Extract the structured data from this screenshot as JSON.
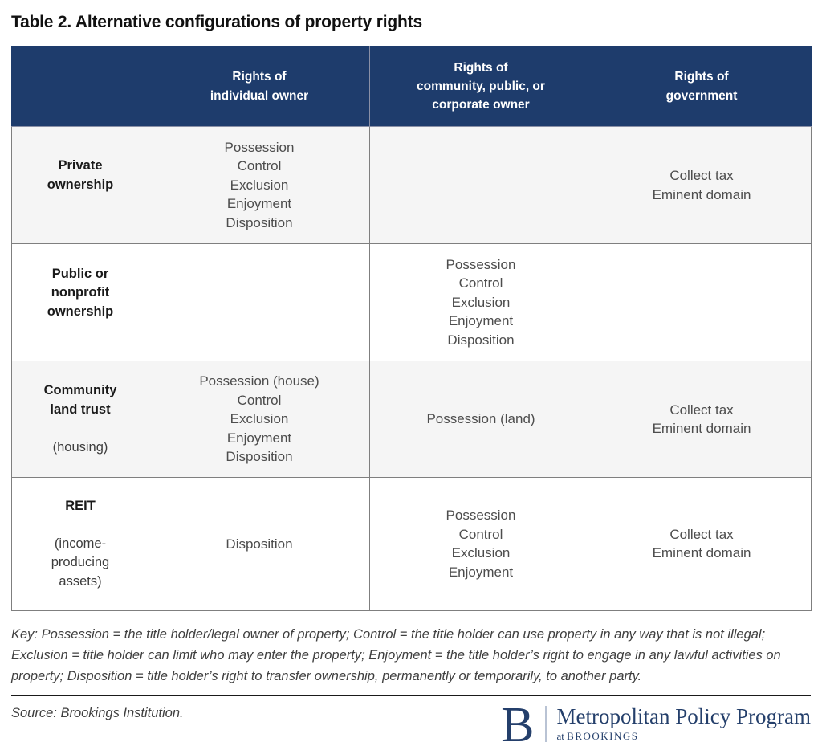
{
  "title": "Table 2. Alternative configurations of property rights",
  "colors": {
    "header_bg": "#1e3c6c",
    "row_alt_bg": "#f5f5f5",
    "border": "#7f7f7f",
    "logo_navy": "#243f6b"
  },
  "table": {
    "headers": [
      "Rights of\nindividual owner",
      "Rights of\ncommunity, public, or\ncorporate owner",
      "Rights of\ngovernment"
    ],
    "rows": [
      {
        "label_bold": "Private\nownership",
        "label_note": "",
        "individual": "Possession\nControl\nExclusion\nEnjoyment\nDisposition",
        "community": "",
        "government": "Collect tax\nEminent domain"
      },
      {
        "label_bold": "Public or\nnonprofit\nownership",
        "label_note": "",
        "individual": "",
        "community": "Possession\nControl\nExclusion\nEnjoyment\nDisposition",
        "government": ""
      },
      {
        "label_bold": "Community\nland trust",
        "label_note": "(housing)",
        "individual": "Possession (house)\nControl\nExclusion\nEnjoyment\nDisposition",
        "community": "Possession (land)",
        "government": "Collect tax\nEminent domain"
      },
      {
        "label_bold": "REIT",
        "label_note": "(income-\nproducing\nassets)",
        "individual": "Disposition",
        "community": "Possession\nControl\nExclusion\nEnjoyment",
        "government": "Collect tax\nEminent domain"
      }
    ]
  },
  "key_text": "Key: Possession = the title holder/legal owner of property; Control = the title holder can use property in any way that is not illegal; Exclusion = title holder can limit who may enter the property; Enjoyment = the title holder’s right to engage in any lawful activities on property; Disposition = title holder’s right to transfer ownership, permanently or temporarily, to another party.",
  "source_text": "Source: Brookings Institution.",
  "logo": {
    "monogram": "B",
    "program": "Metropolitan Policy Program",
    "at": "at ",
    "brookings": "BROOKINGS"
  }
}
